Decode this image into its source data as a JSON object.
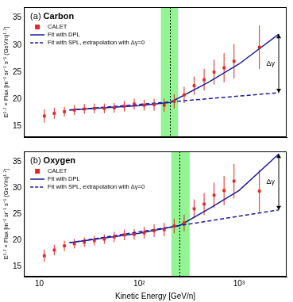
{
  "chart_data": [
    {
      "type": "scatter",
      "title": "(a) Carbon",
      "ylabel": "E²·⁷ × Flux [m⁻² sr⁻¹ s⁻¹ (GeV/n)¹·⁷]",
      "log": "x",
      "grid": false,
      "legend": "upper left",
      "tick_labels": "y",
      "xlim": [
        7,
        3000
      ],
      "xticks": [
        10,
        100,
        1000
      ],
      "ylim": [
        13,
        37
      ],
      "yticks": [
        15,
        20,
        25,
        30,
        35
      ],
      "band": [
        165,
        245
      ],
      "break": 205,
      "annotations": [
        {
          "text": "Δγ",
          "x": 2500,
          "y_from": 21.2,
          "y_to": 32
        }
      ],
      "series": [
        {
          "name": "CALET",
          "type": "scatter",
          "marker": "square",
          "color": "#e8231f",
          "x": [
            11.2,
            14.1,
            17.8,
            22.4,
            28.2,
            35.5,
            44.7,
            56.2,
            70.8,
            89.1,
            112,
            141,
            178,
            224,
            282,
            355,
            447,
            562,
            708,
            891,
            1600
          ],
          "values": [
            16.9,
            17.4,
            17.7,
            18.0,
            18.2,
            18.3,
            18.3,
            18.4,
            18.7,
            19.1,
            18.9,
            19.0,
            18.9,
            19.6,
            20.8,
            22.5,
            23.6,
            25.0,
            25.8,
            27.0,
            29.6
          ],
          "errors": [
            1.2,
            1.0,
            0.9,
            0.9,
            0.9,
            0.9,
            0.9,
            0.9,
            1.0,
            1.0,
            1.0,
            1.1,
            1.2,
            1.3,
            1.5,
            1.7,
            2.0,
            2.3,
            2.7,
            3.2,
            4.0
          ]
        },
        {
          "name": "Fit with DPL",
          "type": "line",
          "line_style": "solid",
          "color": "#1b1b9c",
          "x": [
            20,
            100,
            205,
            500,
            1000,
            2500
          ],
          "values": [
            18.0,
            18.8,
            19.4,
            23.2,
            26.5,
            32.0
          ]
        },
        {
          "name": "Fit with SPL, extrapolation with Δγ=0",
          "type": "line",
          "line_style": "dashed",
          "color": "#1b1b9c",
          "x": [
            20,
            205,
            2500
          ],
          "values": [
            18.0,
            19.5,
            21.2
          ]
        }
      ]
    },
    {
      "type": "scatter",
      "title": "(b) Oxygen",
      "xlabel": "Kinetic Energy [GeV/n]",
      "ylabel": "E²·⁷ × Flux [m⁻² sr⁻¹ s⁻¹ (GeV/n)¹·⁷]",
      "log": "x",
      "grid": false,
      "legend": "upper left",
      "tick_labels": true,
      "xlim": [
        7,
        3000
      ],
      "xticks": [
        {
          "value": 10,
          "label": "10"
        },
        {
          "value": 100,
          "label": "10²"
        },
        {
          "value": 1000,
          "label": "10³"
        }
      ],
      "ylim": [
        13,
        37
      ],
      "yticks": [
        15,
        20,
        25,
        30,
        35
      ],
      "band": [
        210,
        320
      ],
      "break": 255,
      "annotations": [
        {
          "text": "Δγ",
          "x": 2500,
          "y_from": 25.8,
          "y_to": 36.5
        }
      ],
      "series": [
        {
          "name": "CALET",
          "type": "scatter",
          "marker": "square",
          "color": "#e8231f",
          "x": [
            11.2,
            14.1,
            17.8,
            22.4,
            28.2,
            35.5,
            44.7,
            56.2,
            70.8,
            89.1,
            112,
            141,
            178,
            224,
            282,
            355,
            447,
            562,
            708,
            891,
            1600
          ],
          "values": [
            17.0,
            18.1,
            18.9,
            19.3,
            19.6,
            19.9,
            20.2,
            20.6,
            21.0,
            21.1,
            21.4,
            21.8,
            22.0,
            22.7,
            23.3,
            26.0,
            26.9,
            28.6,
            29.5,
            31.3,
            29.4
          ],
          "errors": [
            1.2,
            1.0,
            1.0,
            0.9,
            0.9,
            0.9,
            0.9,
            1.0,
            1.0,
            1.0,
            1.1,
            1.2,
            1.3,
            1.4,
            1.6,
            1.8,
            2.1,
            2.4,
            2.8,
            3.3,
            4.0
          ]
        },
        {
          "name": "Fit with DPL",
          "type": "line",
          "line_style": "solid",
          "color": "#1b1b9c",
          "x": [
            20,
            100,
            255,
            500,
            1000,
            2500
          ],
          "values": [
            19.5,
            21.3,
            22.8,
            26.0,
            29.5,
            36.5
          ]
        },
        {
          "name": "Fit with SPL, extrapolation with Δγ=0",
          "type": "line",
          "line_style": "dashed",
          "color": "#1b1b9c",
          "x": [
            20,
            255,
            2500
          ],
          "values": [
            19.5,
            22.8,
            25.8
          ]
        }
      ]
    }
  ]
}
